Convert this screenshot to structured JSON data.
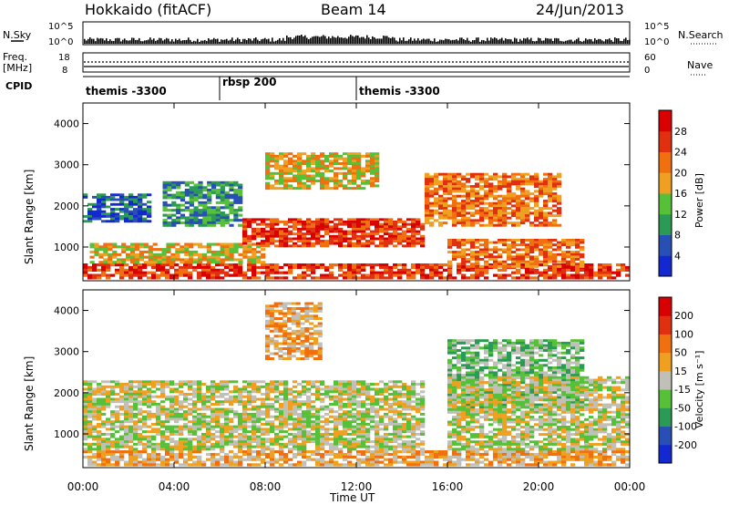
{
  "header": {
    "station": "Hokkaido (fitACF)",
    "beam": "Beam 14",
    "date": "24/Jun/2013"
  },
  "strip": {
    "nsky_label": "N.Sky",
    "nsky_tick_top": "10^5",
    "nsky_tick_bottom": "10^0",
    "nsearch_label": "N.Search",
    "nsearch_tick_top": "10^5",
    "nsearch_tick_bottom": "10^0",
    "freq_label": "Freq.",
    "freq_unit": "[MHz]",
    "freq_tick_top": "18",
    "freq_tick_bottom": "8",
    "nave_label": "Nave",
    "nave_tick_top": "60",
    "nave_tick_bottom": "0",
    "cpid_label": "CPID"
  },
  "cpid_segments": [
    {
      "label": "themis -3300",
      "start_hour": 0
    },
    {
      "label": "rbsp 200",
      "start_hour": 6
    },
    {
      "label": "themis -3300",
      "start_hour": 12
    }
  ],
  "chart_data": [
    {
      "type": "heatmap",
      "name": "power",
      "ylabel": "Slant Range [km]",
      "xlabel": "",
      "x_range_hours": [
        0,
        24
      ],
      "ylim": [
        180,
        4500
      ],
      "yticks": [
        1000,
        2000,
        3000,
        4000
      ],
      "colorbar": {
        "label": "Power [dB]",
        "ticks": [
          "4",
          "8",
          "12",
          "16",
          "20",
          "24",
          "28"
        ],
        "colors": [
          "#1428d2",
          "#2850b4",
          "#2a9a55",
          "#55c038",
          "#f0a020",
          "#f07010",
          "#e03010",
          "#d80000"
        ]
      },
      "features": [
        {
          "t0": 0,
          "t1": 24,
          "r0": 220,
          "r1": 600,
          "level": 6
        },
        {
          "t0": 0.3,
          "t1": 8,
          "r0": 600,
          "r1": 1100,
          "level": 4
        },
        {
          "t0": 7,
          "t1": 15,
          "r0": 1000,
          "r1": 1700,
          "level": 6
        },
        {
          "t0": 15,
          "t1": 21,
          "r0": 1500,
          "r1": 2800,
          "level": 5
        },
        {
          "t0": 16,
          "t1": 22,
          "r0": 500,
          "r1": 1200,
          "level": 5
        },
        {
          "t0": 8,
          "t1": 13,
          "r0": 2400,
          "r1": 3300,
          "level": 4
        },
        {
          "t0": 3.5,
          "t1": 7,
          "r0": 1500,
          "r1": 2600,
          "level": 2
        },
        {
          "t0": 0,
          "t1": 3,
          "r0": 1600,
          "r1": 2300,
          "level": 1
        }
      ]
    },
    {
      "type": "heatmap",
      "name": "velocity",
      "ylabel": "Slant Range [km]",
      "xlabel": "Time UT",
      "x_range_hours": [
        0,
        24
      ],
      "ylim": [
        180,
        4500
      ],
      "yticks": [
        1000,
        2000,
        3000,
        4000
      ],
      "xticks": [
        "00:00",
        "04:00",
        "08:00",
        "12:00",
        "16:00",
        "20:00",
        "00:00"
      ],
      "colorbar": {
        "label": "Velocity [m s⁻¹]",
        "ticks": [
          "200",
          "100",
          "50",
          "15",
          "-15",
          "-50",
          "-100",
          "-200"
        ],
        "colors": [
          "#1428d2",
          "#2850b4",
          "#2a9a55",
          "#55c038",
          "#c0c0b8",
          "#f0a020",
          "#f07010",
          "#e03010",
          "#d80000"
        ]
      },
      "features": [
        {
          "t0": 0,
          "t1": 24,
          "r0": 220,
          "r1": 600,
          "level": 5
        },
        {
          "t0": 0,
          "t1": 15,
          "r0": 600,
          "r1": 2300,
          "level": 4
        },
        {
          "t0": 8,
          "t1": 10.5,
          "r0": 2800,
          "r1": 4200,
          "level": 5
        },
        {
          "t0": 16,
          "t1": 22,
          "r0": 1500,
          "r1": 3300,
          "level": 3
        },
        {
          "t0": 16,
          "t1": 24,
          "r0": 600,
          "r1": 2400,
          "level": 4
        }
      ]
    }
  ]
}
